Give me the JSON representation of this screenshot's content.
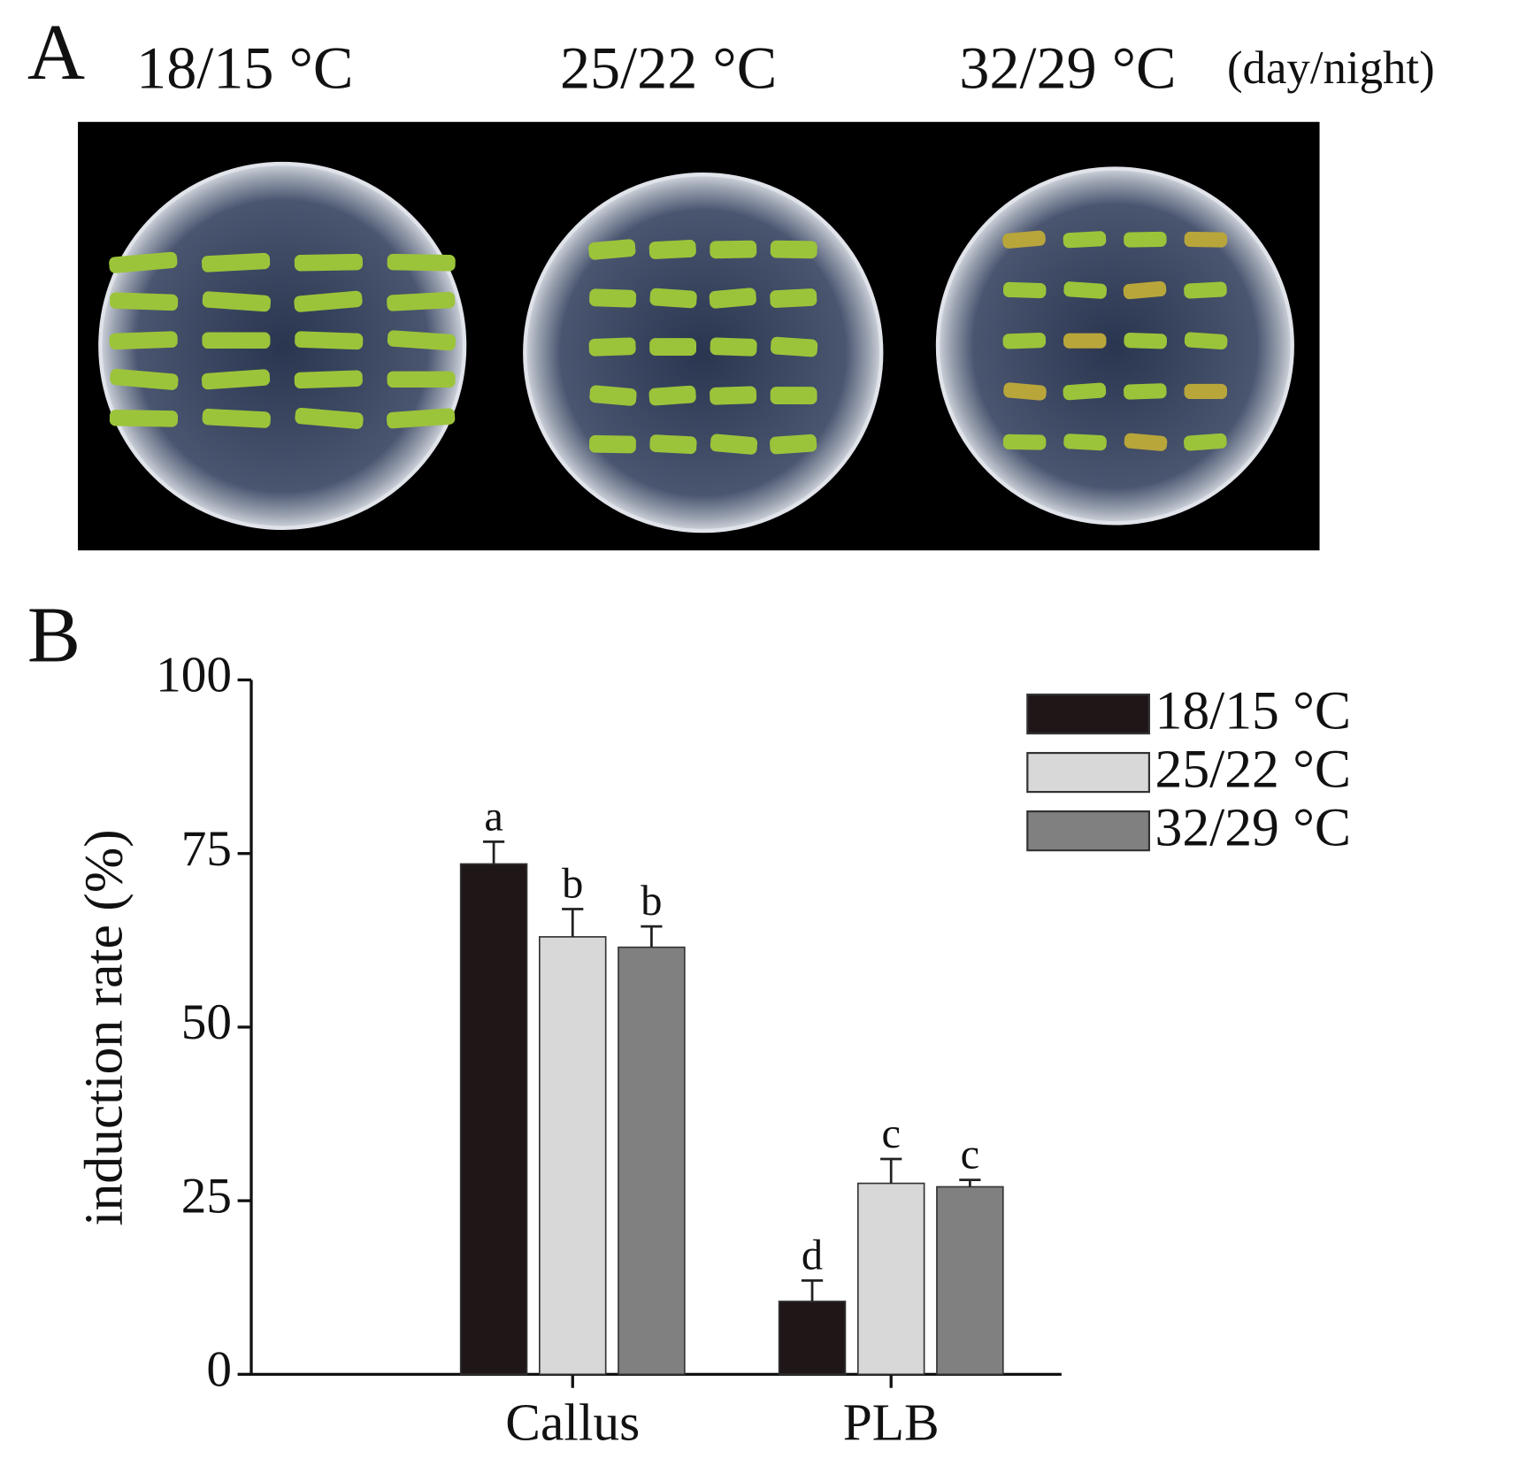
{
  "panel_a": {
    "label": "A",
    "conditions": [
      "18/15 °C",
      "25/22 °C",
      "32/29 °C"
    ],
    "note": "(day/night)"
  },
  "chart_data": {
    "type": "bar",
    "panel_label": "B",
    "ylabel": "induction rate (%)",
    "categories": [
      "Callus",
      "PLB"
    ],
    "ylim": [
      0,
      100
    ],
    "yticks": [
      0,
      25,
      50,
      75,
      100
    ],
    "series": [
      {
        "name": "18/15 °C",
        "color": "#1e1617",
        "values": [
          73.5,
          10.5
        ],
        "errors": [
          3.2,
          3
        ],
        "letters": [
          "a",
          "d"
        ]
      },
      {
        "name": "25/22 °C",
        "color": "#d8d8d8",
        "values": [
          63,
          27.5
        ],
        "errors": [
          4,
          3.5
        ],
        "letters": [
          "b",
          "c"
        ]
      },
      {
        "name": "32/29 °C",
        "color": "#808080",
        "values": [
          61.5,
          27
        ],
        "errors": [
          3,
          1
        ],
        "letters": [
          "b",
          "c"
        ]
      }
    ]
  }
}
